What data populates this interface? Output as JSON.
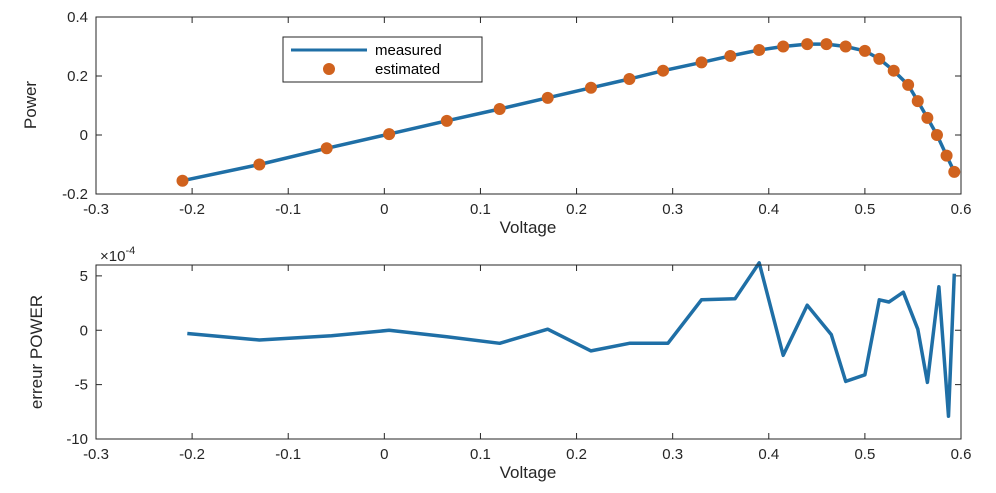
{
  "chart_data": [
    {
      "type": "line",
      "xlabel": "Voltage",
      "ylabel": "Power",
      "xlim": [
        -0.3,
        0.6
      ],
      "ylim": [
        -0.2,
        0.4
      ],
      "xticks": [
        "-0.3",
        "-0.2",
        "-0.1",
        "0",
        "0.1",
        "0.2",
        "0.3",
        "0.4",
        "0.5",
        "0.6"
      ],
      "yticks": [
        "-0.2",
        "0",
        "0.2",
        "0.4"
      ],
      "legend_position": "top-left",
      "colors": {
        "measured": "#1f6fa6",
        "estimated": "#d0621e"
      },
      "series": [
        {
          "name": "measured",
          "style": "line",
          "x": [
            -0.21,
            -0.13,
            -0.06,
            0.005,
            0.065,
            0.12,
            0.17,
            0.215,
            0.255,
            0.29,
            0.33,
            0.36,
            0.39,
            0.415,
            0.44,
            0.46,
            0.48,
            0.5,
            0.515,
            0.53,
            0.545,
            0.555,
            0.565,
            0.575,
            0.585,
            0.593
          ],
          "y": [
            -0.155,
            -0.1,
            -0.045,
            0.003,
            0.048,
            0.088,
            0.126,
            0.16,
            0.19,
            0.218,
            0.246,
            0.268,
            0.288,
            0.3,
            0.308,
            0.308,
            0.3,
            0.285,
            0.258,
            0.218,
            0.17,
            0.115,
            0.058,
            0.0,
            -0.07,
            -0.125
          ]
        },
        {
          "name": "estimated",
          "style": "markers",
          "x": [
            -0.21,
            -0.13,
            -0.06,
            0.005,
            0.065,
            0.12,
            0.17,
            0.215,
            0.255,
            0.29,
            0.33,
            0.36,
            0.39,
            0.415,
            0.44,
            0.46,
            0.48,
            0.5,
            0.515,
            0.53,
            0.545,
            0.555,
            0.565,
            0.575,
            0.585,
            0.593
          ],
          "y": [
            -0.155,
            -0.1,
            -0.045,
            0.003,
            0.048,
            0.088,
            0.126,
            0.16,
            0.19,
            0.218,
            0.246,
            0.268,
            0.288,
            0.3,
            0.308,
            0.308,
            0.3,
            0.285,
            0.258,
            0.218,
            0.17,
            0.115,
            0.058,
            0.0,
            -0.07,
            -0.125
          ]
        }
      ]
    },
    {
      "type": "line",
      "xlabel": "Voltage",
      "ylabel": "erreur POWER",
      "xlim": [
        -0.3,
        0.6
      ],
      "ylim": [
        -10,
        6
      ],
      "y_multiplier": "×10",
      "y_multiplier_exponent": "-4",
      "xticks": [
        "-0.3",
        "-0.2",
        "-0.1",
        "0",
        "0.1",
        "0.2",
        "0.3",
        "0.4",
        "0.5",
        "0.6"
      ],
      "yticks": [
        "-10",
        "-5",
        "0",
        "5"
      ],
      "colors": {
        "error": "#1f6fa6"
      },
      "series": [
        {
          "x": [
            -0.205,
            -0.13,
            -0.055,
            0.005,
            0.065,
            0.12,
            0.17,
            0.215,
            0.255,
            0.295,
            0.33,
            0.365,
            0.39,
            0.415,
            0.44,
            0.465,
            0.48,
            0.5,
            0.515,
            0.525,
            0.54,
            0.555,
            0.565,
            0.577,
            0.587,
            0.593
          ],
          "y": [
            -0.3,
            -0.9,
            -0.5,
            0.0,
            -0.6,
            -1.2,
            0.1,
            -1.9,
            -1.2,
            -1.2,
            2.8,
            2.9,
            6.2,
            -2.3,
            2.3,
            -0.4,
            -4.7,
            -4.1,
            2.8,
            2.6,
            3.5,
            0.1,
            -4.8,
            4.0,
            -7.9,
            5.2
          ]
        }
      ]
    }
  ]
}
